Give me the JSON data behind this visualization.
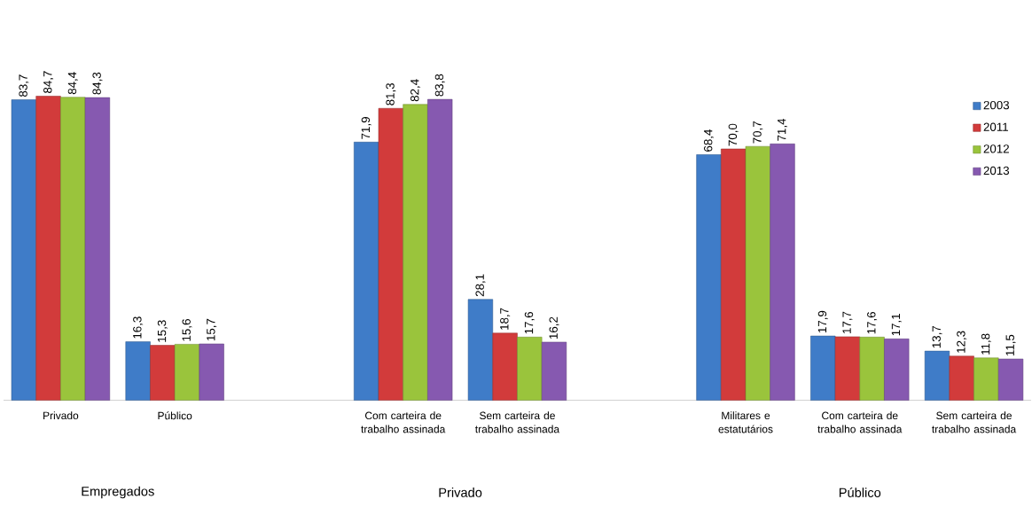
{
  "chart_data": {
    "type": "bar",
    "categories": [
      "Privado",
      "Público",
      null,
      "Com carteira de trabalho assinada",
      "Sem carteira de trabalho assinada",
      null,
      "Militares e estatutários",
      "Com carteira de trabalho assinada",
      "Sem carteira de trabalho assinada"
    ],
    "series": [
      {
        "name": "2003",
        "color": "#3f7cc8",
        "values": [
          83.7,
          16.3,
          null,
          71.9,
          28.1,
          null,
          68.4,
          17.9,
          13.7
        ],
        "value_labels": [
          "83,7",
          "16,3",
          null,
          "71,9",
          "28,1",
          null,
          "68,4",
          "17,9",
          "13,7"
        ]
      },
      {
        "name": "2011",
        "color": "#d23b3b",
        "values": [
          84.7,
          15.3,
          null,
          81.3,
          18.7,
          null,
          70.0,
          17.7,
          12.3
        ],
        "value_labels": [
          "84,7",
          "15,3",
          null,
          "81,3",
          "18,7",
          null,
          "70,0",
          "17,7",
          "12,3"
        ]
      },
      {
        "name": "2012",
        "color": "#9ac43c",
        "values": [
          84.4,
          15.6,
          null,
          82.4,
          17.6,
          null,
          70.7,
          17.6,
          11.8
        ],
        "value_labels": [
          "84,4",
          "15,6",
          null,
          "82,4",
          "17,6",
          null,
          "70,7",
          "17,6",
          "11,8"
        ]
      },
      {
        "name": "2013",
        "color": "#8659b0",
        "values": [
          84.3,
          15.7,
          null,
          83.8,
          16.2,
          null,
          71.4,
          17.1,
          11.5
        ],
        "value_labels": [
          "84,3",
          "15,7",
          null,
          "83,8",
          "16,2",
          null,
          "71,4",
          "17,1",
          "11,5"
        ]
      }
    ],
    "legend": "top right",
    "annotations": [
      "Empregados",
      "Privado",
      "Público"
    ]
  }
}
